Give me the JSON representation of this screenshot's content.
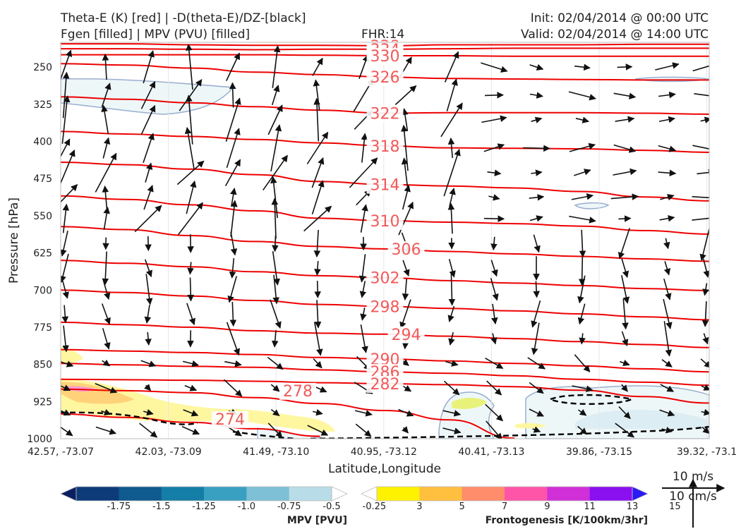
{
  "header": {
    "line1_left": "Theta-E (K) [red] | -D(theta-E)/DZ-[black]",
    "line2_left": "Fgen [filled] | MPV (PVU) [filled]",
    "fhr": "FHR:14",
    "init": "Init: 02/04/2014 @ 00:00 UTC",
    "valid": "Valid: 02/04/2014 @ 14:00 UTC"
  },
  "chart_data": {
    "type": "cross-section",
    "xlabel": "Latitude,Longitude",
    "ylabel": "Pressure [hPa]",
    "x_ticks": [
      "42.57, -73.07",
      "42.03, -73.09",
      "41.49, -73.10",
      "40.95, -73.12",
      "40.41, -73.13",
      "39.86, -73.15",
      "39.32, -73.1"
    ],
    "y_ticks": [
      250,
      325,
      400,
      475,
      550,
      625,
      700,
      775,
      850,
      925,
      1000
    ],
    "ylim": [
      1000,
      200
    ],
    "y_scale": "linear-inverted",
    "theta_e_contours": [
      {
        "value": 338,
        "p": [
          203,
          203,
          205,
          206,
          206,
          207,
          205,
          205,
          205,
          204,
          204
        ]
      },
      {
        "value": 334,
        "p": [
          213,
          213,
          214,
          215,
          214,
          214,
          213,
          212,
          212,
          212,
          212
        ]
      },
      {
        "value": 330,
        "p": [
          225,
          225,
          225,
          225,
          226,
          227,
          227,
          228,
          228,
          228,
          228
        ]
      },
      {
        "value": 326,
        "p": [
          243,
          246,
          252,
          260,
          265,
          270,
          273,
          274,
          275,
          276,
          276
        ]
      },
      {
        "value": 322,
        "p": [
          310,
          315,
          322,
          330,
          337,
          343,
          342,
          342,
          342,
          343,
          345
        ]
      },
      {
        "value": 318,
        "p": [
          380,
          385,
          390,
          396,
          403,
          409,
          413,
          414,
          415,
          418,
          422
        ]
      },
      {
        "value": 314,
        "p": [
          442,
          447,
          456,
          467,
          481,
          487,
          490,
          494,
          501,
          512,
          520
        ]
      },
      {
        "value": 310,
        "p": [
          510,
          517,
          528,
          540,
          555,
          560,
          563,
          566,
          571,
          580,
          587
        ]
      },
      {
        "value": 306,
        "p": [
          572,
          578,
          590,
          602,
          612,
          617,
          622,
          627,
          632,
          637,
          642
        ]
      },
      {
        "value": 302,
        "p": [
          640,
          646,
          653,
          663,
          671,
          675,
          681,
          686,
          691,
          697,
          701
        ]
      },
      {
        "value": 298,
        "p": [
          700,
          705,
          712,
          721,
          729,
          733,
          737,
          742,
          748,
          754,
          760
        ]
      },
      {
        "value": 294,
        "p": [
          765,
          770,
          775,
          782,
          787,
          789,
          793,
          798,
          804,
          810,
          816
        ]
      },
      {
        "value": 290,
        "p": [
          820,
          823,
          826,
          830,
          836,
          839,
          843,
          848,
          853,
          859,
          865
        ]
      },
      {
        "value": 286,
        "p": [
          848,
          851,
          854,
          856,
          861,
          865,
          868,
          873,
          880,
          886,
          892
        ]
      },
      {
        "value": 282,
        "p": [
          880,
          881,
          882,
          884,
          887,
          889,
          891,
          895,
          902,
          915,
          928
        ]
      },
      {
        "value": 278,
        "p": [
          900,
          903,
          907,
          917,
          929,
          943,
          962,
          999,
          null,
          null,
          null
        ]
      },
      {
        "value": 274,
        "p": [
          950,
          957,
          967,
          980,
          995,
          null,
          null,
          null,
          null,
          null,
          null
        ]
      }
    ],
    "colorbars": [
      {
        "name": "MPV [PVU]",
        "tick_labels": [
          "-1.75",
          "-1.5",
          "-1.25",
          "-1.0",
          "-0.75",
          "-0.5",
          "-0.25"
        ],
        "colors": [
          "#0b1f63",
          "#0d3b7a",
          "#0f5a8f",
          "#147ea6",
          "#3aa0c2",
          "#7ec0d6",
          "#b9dde8",
          "#ffffff"
        ]
      },
      {
        "name": "Frontogenesis [K/100km/3hr]",
        "tick_labels": [
          "3",
          "5",
          "7",
          "9",
          "11",
          "13",
          "15"
        ],
        "colors": [
          "#ffffff",
          "#fff200",
          "#ffbf3f",
          "#ff8c6a",
          "#ff55a8",
          "#d030d8",
          "#8a10f0",
          "#2a1af5"
        ]
      }
    ],
    "reference_vectors": [
      "10 m/s",
      "10 cm/s"
    ],
    "colors": {
      "theta_e": "#ee0000",
      "theta_e_label": "#f05a5a",
      "fgen_low": "#fff7a0",
      "mpv_low": "#e4f2f4"
    }
  }
}
